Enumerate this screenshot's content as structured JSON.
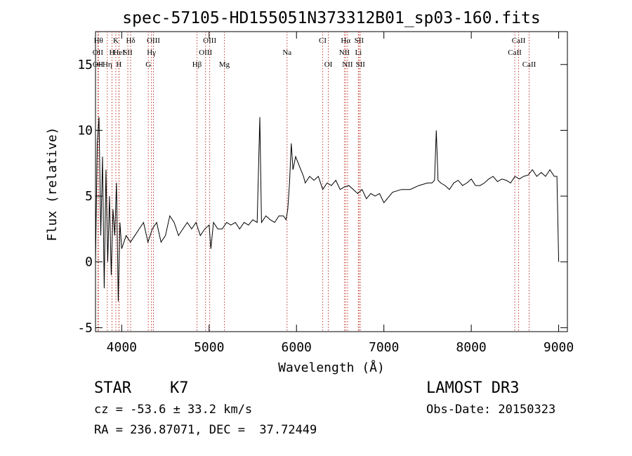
{
  "chart_data": {
    "type": "line",
    "title": "spec-57105-HD155051N373312B01_sp03-160.fits",
    "xlabel": "Wavelength (Å)",
    "ylabel": "Flux (relative)",
    "xlim": [
      3700,
      9100
    ],
    "ylim": [
      -5.3,
      17.5
    ],
    "x_ticks": [
      4000,
      5000,
      6000,
      7000,
      8000,
      9000
    ],
    "y_ticks": [
      -5,
      0,
      5,
      10,
      15
    ],
    "series": [
      {
        "name": "flux",
        "x": [
          3700,
          3720,
          3740,
          3760,
          3780,
          3800,
          3820,
          3840,
          3860,
          3880,
          3900,
          3920,
          3940,
          3960,
          3980,
          4000,
          4050,
          4100,
          4150,
          4200,
          4250,
          4300,
          4350,
          4400,
          4450,
          4500,
          4550,
          4600,
          4650,
          4700,
          4750,
          4800,
          4850,
          4900,
          4950,
          5000,
          5020,
          5050,
          5100,
          5150,
          5200,
          5250,
          5300,
          5350,
          5400,
          5450,
          5500,
          5550,
          5580,
          5600,
          5650,
          5700,
          5750,
          5800,
          5850,
          5880,
          5900,
          5920,
          5940,
          5960,
          5990,
          6020,
          6050,
          6080,
          6100,
          6150,
          6200,
          6250,
          6300,
          6350,
          6400,
          6450,
          6500,
          6550,
          6600,
          6650,
          6700,
          6750,
          6800,
          6850,
          6900,
          6950,
          7000,
          7100,
          7200,
          7300,
          7400,
          7500,
          7550,
          7580,
          7600,
          7620,
          7650,
          7700,
          7750,
          7800,
          7850,
          7900,
          7950,
          8000,
          8050,
          8100,
          8150,
          8200,
          8250,
          8300,
          8350,
          8400,
          8450,
          8500,
          8550,
          8600,
          8650,
          8700,
          8750,
          8800,
          8850,
          8900,
          8950,
          8980,
          9000
        ],
        "values": [
          0,
          9,
          11,
          2,
          8,
          -2,
          7,
          0,
          5,
          -1,
          4,
          2,
          6,
          -3,
          3,
          1,
          2,
          1.5,
          2,
          2.5,
          3,
          1.5,
          2.5,
          3,
          1.5,
          2,
          3.5,
          3,
          2,
          2.5,
          3,
          2.5,
          3,
          2,
          2.5,
          2.8,
          1,
          3,
          2.5,
          2.5,
          3,
          2.8,
          3,
          2.5,
          3,
          2.8,
          3.2,
          3,
          11,
          3,
          3.5,
          3.2,
          3,
          3.5,
          3.5,
          3.2,
          4,
          6,
          9,
          7,
          8,
          7.5,
          7,
          6.5,
          6,
          6.5,
          6.2,
          6.5,
          5.5,
          6,
          5.8,
          6.2,
          5.5,
          5.7,
          5.8,
          5.5,
          5.2,
          5.5,
          4.8,
          5.2,
          5,
          5.2,
          4.5,
          5.3,
          5.5,
          5.5,
          5.8,
          6,
          6,
          6.2,
          10,
          6.2,
          6,
          5.8,
          5.5,
          6,
          6.2,
          5.8,
          6,
          6.3,
          5.8,
          5.8,
          6,
          6.3,
          6.5,
          6.1,
          6.3,
          6.2,
          6,
          6.5,
          6.3,
          6.5,
          6.6,
          7,
          6.5,
          6.8,
          6.5,
          7,
          6.5,
          6.5,
          0
        ]
      }
    ],
    "lines": [
      {
        "label": "Hθ",
        "x": 3734,
        "row": 1
      },
      {
        "label": "K",
        "x": 3933,
        "row": 1
      },
      {
        "label": "Hδ",
        "x": 4102,
        "row": 1
      },
      {
        "label": "OIII",
        "x": 4363,
        "row": 1
      },
      {
        "label": "OIII",
        "x": 5007,
        "row": 1
      },
      {
        "label": "CI",
        "x": 6300,
        "row": 1
      },
      {
        "label": "Hα",
        "x": 6563,
        "row": 1
      },
      {
        "label": "SII",
        "x": 6716,
        "row": 1
      },
      {
        "label": "CaII",
        "x": 8542,
        "row": 1
      },
      {
        "label": "OII",
        "x": 3727,
        "row": 2
      },
      {
        "label": "H",
        "x": 3889,
        "row": 2
      },
      {
        "label": "HeI",
        "x": 3970,
        "row": 2
      },
      {
        "label": "SII",
        "x": 4070,
        "row": 2
      },
      {
        "label": "Hγ",
        "x": 4340,
        "row": 2
      },
      {
        "label": "OIII",
        "x": 4959,
        "row": 2
      },
      {
        "label": "Na",
        "x": 5892,
        "row": 2
      },
      {
        "label": "NII",
        "x": 6548,
        "row": 2
      },
      {
        "label": "Li",
        "x": 6708,
        "row": 2
      },
      {
        "label": "CaII",
        "x": 8498,
        "row": 2
      },
      {
        "label": "OII",
        "x": 3729,
        "row": 3
      },
      {
        "label": "Hη",
        "x": 3835,
        "row": 3
      },
      {
        "label": "H",
        "x": 3968,
        "row": 3
      },
      {
        "label": "G",
        "x": 4304,
        "row": 3
      },
      {
        "label": "Hβ",
        "x": 4861,
        "row": 3
      },
      {
        "label": "Mg",
        "x": 5175,
        "row": 3
      },
      {
        "label": "OI",
        "x": 6364,
        "row": 3
      },
      {
        "label": "NII",
        "x": 6584,
        "row": 3
      },
      {
        "label": "SII",
        "x": 6731,
        "row": 3
      },
      {
        "label": "CaII",
        "x": 8662,
        "row": 3
      }
    ]
  },
  "info": {
    "object_class": "STAR",
    "subclass": "K7",
    "survey": "LAMOST DR3",
    "redshift": "cz = -53.6 ± 33.2 km/s",
    "obs_date": "Obs-Date: 20150323",
    "coords": "RA = 236.87071, DEC =  37.72449"
  }
}
